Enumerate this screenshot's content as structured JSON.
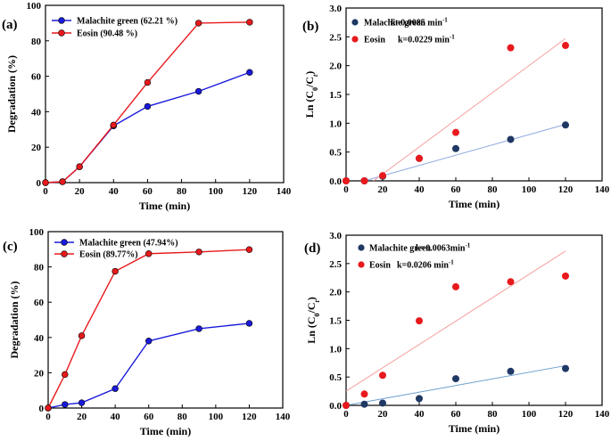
{
  "chart_data": [
    {
      "panel": "(a)",
      "type": "line",
      "xlabel": "Time (min)",
      "ylabel": "Degradation (%)",
      "xlim": [
        0,
        140
      ],
      "ylim": [
        0,
        100
      ],
      "xticks": [
        0,
        20,
        40,
        60,
        80,
        100,
        120,
        140
      ],
      "yticks": [
        0,
        20,
        40,
        60,
        80,
        100
      ],
      "legend_position": "top-left",
      "series": [
        {
          "name": "Malachite green (62.21 %)",
          "color": "#1a1adc",
          "x": [
            0,
            10,
            20,
            40,
            60,
            90,
            120
          ],
          "y": [
            0,
            0.5,
            9,
            32,
            43,
            51.5,
            62.2
          ]
        },
        {
          "name": "Eosin (90.48 %)",
          "color": "#e8191c",
          "x": [
            0,
            10,
            20,
            40,
            60,
            90,
            120
          ],
          "y": [
            0,
            0.5,
            9,
            32.5,
            56.5,
            90,
            90.5
          ]
        }
      ]
    },
    {
      "panel": "(b)",
      "type": "scatter",
      "xlabel": "Time (min)",
      "ylabel_main": "Ln (C",
      "ylabel_sub0": "0",
      "ylabel_mid": "/C",
      "ylabel_end": ")",
      "xlim": [
        0,
        140
      ],
      "ylim": [
        0,
        3.0
      ],
      "xticks": [
        0,
        20,
        40,
        60,
        80,
        100,
        120,
        140
      ],
      "yticks": [
        "0.0",
        "0.5",
        "1.0",
        "1.5",
        "2.0",
        "2.5",
        "3.0"
      ],
      "legend_position": "top-left",
      "series": [
        {
          "name": "Malachite green",
          "rate": "k=0.0085 min",
          "rate_exp": "-1",
          "color": "#1f3864",
          "line_color": "#8fa8e0",
          "x": [
            0,
            10,
            20,
            40,
            60,
            90,
            120
          ],
          "y": [
            0,
            0,
            0.08,
            0.39,
            0.56,
            0.72,
            0.97
          ],
          "fit": {
            "x": [
              10,
              120
            ],
            "y": [
              0,
              0.98
            ]
          }
        },
        {
          "name": "Eosin",
          "rate": "k=0.0229 min",
          "rate_exp": "-1",
          "color": "#e8191c",
          "line_color": "#f4a0a0",
          "x": [
            0,
            10,
            20,
            40,
            60,
            90,
            120
          ],
          "y": [
            0,
            0,
            0.09,
            0.39,
            0.84,
            2.31,
            2.35
          ],
          "fit": {
            "x": [
              15,
              120
            ],
            "y": [
              0,
              2.47
            ]
          }
        }
      ]
    },
    {
      "panel": "(c)",
      "type": "line",
      "xlabel": "Time (min)",
      "ylabel": "Degradation (%)",
      "xlim": [
        0,
        140
      ],
      "ylim": [
        0,
        100
      ],
      "xticks": [
        0,
        20,
        40,
        60,
        80,
        100,
        120,
        140
      ],
      "yticks": [
        0,
        20,
        40,
        60,
        80,
        100
      ],
      "legend_position": "top-left",
      "series": [
        {
          "name": "Malachite green (47.94%)",
          "color": "#1a1adc",
          "x": [
            0,
            10,
            20,
            40,
            60,
            90,
            120
          ],
          "y": [
            0,
            2,
            3,
            11,
            38,
            45,
            48
          ]
        },
        {
          "name": "Eosin (89.77%)",
          "color": "#e8191c",
          "x": [
            0,
            10,
            20,
            40,
            60,
            90,
            120
          ],
          "y": [
            0,
            19,
            41,
            77.5,
            87.5,
            88.5,
            89.8
          ]
        }
      ]
    },
    {
      "panel": "(d)",
      "type": "scatter",
      "xlabel": "Time (min)",
      "ylabel_main": "Ln (C",
      "ylabel_sub0": "0",
      "ylabel_mid": "/C",
      "ylabel_end": ")",
      "xlim": [
        0,
        140
      ],
      "ylim": [
        0,
        3.0
      ],
      "xticks": [
        0,
        20,
        40,
        60,
        80,
        100,
        120,
        140
      ],
      "yticks": [
        "0.0",
        "0.5",
        "1.0",
        "1.5",
        "2.0",
        "2.5",
        "3.0"
      ],
      "legend_position": "top-left",
      "series": [
        {
          "name": "Malachite green",
          "rate": "k=0.0063min",
          "rate_exp": "-1",
          "color": "#1f3864",
          "line_color": "#6aa0d0",
          "x": [
            0,
            10,
            20,
            40,
            60,
            90,
            120
          ],
          "y": [
            0,
            0.02,
            0.04,
            0.12,
            0.47,
            0.6,
            0.65
          ],
          "fit": {
            "x": [
              0,
              120
            ],
            "y": [
              -0.05,
              0.7
            ]
          }
        },
        {
          "name": "Eosin",
          "rate": "k=0.0206 min",
          "rate_exp": "-1",
          "color": "#e8191c",
          "line_color": "#f4a0a0",
          "x": [
            0,
            10,
            20,
            40,
            60,
            90,
            120
          ],
          "y": [
            0,
            0.2,
            0.53,
            1.49,
            2.09,
            2.18,
            2.28
          ],
          "fit": {
            "x": [
              0,
              120
            ],
            "y": [
              0.25,
              2.72
            ]
          }
        }
      ]
    }
  ]
}
